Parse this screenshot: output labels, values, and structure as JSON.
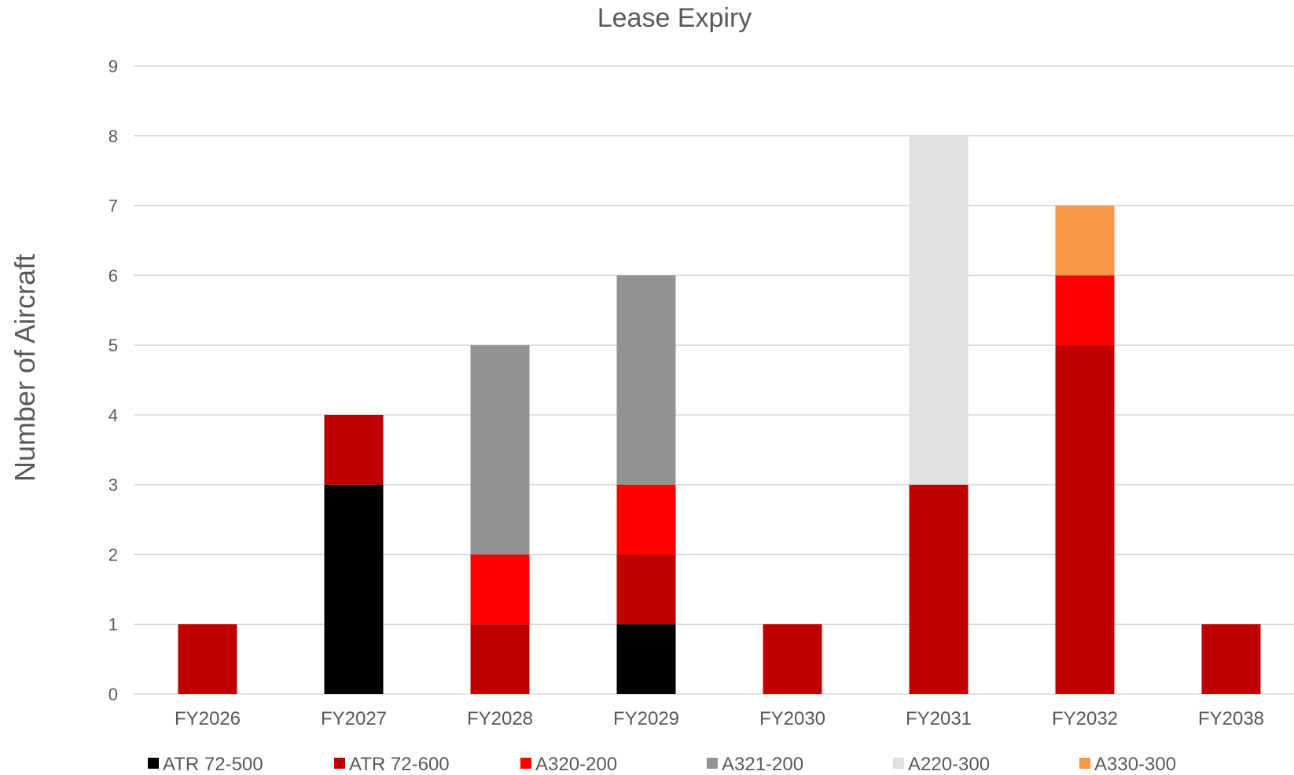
{
  "chart_data": {
    "type": "bar",
    "stacked": true,
    "title": "Lease Expiry",
    "ylabel": "Number of Aircraft",
    "xlabel": "",
    "ylim": [
      0,
      9
    ],
    "yticks": [
      0,
      1,
      2,
      3,
      4,
      5,
      6,
      7,
      8,
      9
    ],
    "grid": true,
    "legend_position": "bottom",
    "categories": [
      "FY2026",
      "FY2027",
      "FY2028",
      "FY2029",
      "FY2030",
      "FY2031",
      "FY2032",
      "FY2038"
    ],
    "series": [
      {
        "name": "ATR 72-500",
        "color": "#000000",
        "values": [
          0,
          3,
          0,
          1,
          0,
          0,
          0,
          0
        ]
      },
      {
        "name": "ATR 72-600",
        "color": "#c00000",
        "values": [
          1,
          1,
          1,
          1,
          1,
          3,
          5,
          1
        ]
      },
      {
        "name": "A320-200",
        "color": "#ff0000",
        "values": [
          0,
          0,
          1,
          1,
          0,
          0,
          1,
          0
        ]
      },
      {
        "name": "A321-200",
        "color": "#939393",
        "values": [
          0,
          0,
          3,
          3,
          0,
          0,
          0,
          0
        ]
      },
      {
        "name": "A220-300",
        "color": "#e0e0e0",
        "values": [
          0,
          0,
          0,
          0,
          0,
          5,
          0,
          0
        ]
      },
      {
        "name": "A330-300",
        "color": "#f79646",
        "values": [
          0,
          0,
          0,
          0,
          0,
          0,
          1,
          0
        ]
      }
    ]
  }
}
